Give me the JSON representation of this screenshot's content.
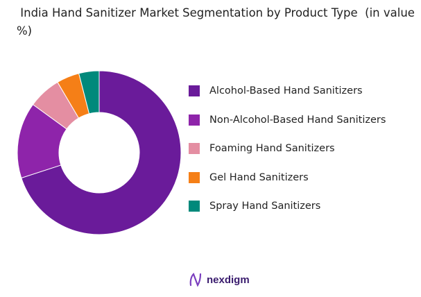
{
  "chart_data": {
    "type": "donut",
    "title": " India Hand Sanitizer Market Segmentation by Product Type  (in value %)",
    "categories": [
      "Alcohol-Based Hand Sanitizers",
      "Non-Alcohol-Based Hand Sanitizers",
      "Foaming Hand Sanitizers",
      "Gel Hand Sanitizers",
      "Spray Hand Sanitizers"
    ],
    "values": [
      70,
      15,
      6.5,
      4.5,
      4
    ],
    "colors": [
      "#6a1b9a",
      "#8e24aa",
      "#e48ea2",
      "#f57f17",
      "#00897b"
    ],
    "legend_position": "right"
  },
  "brand": {
    "name": "nexdigm",
    "color": "#3a1c6e"
  }
}
